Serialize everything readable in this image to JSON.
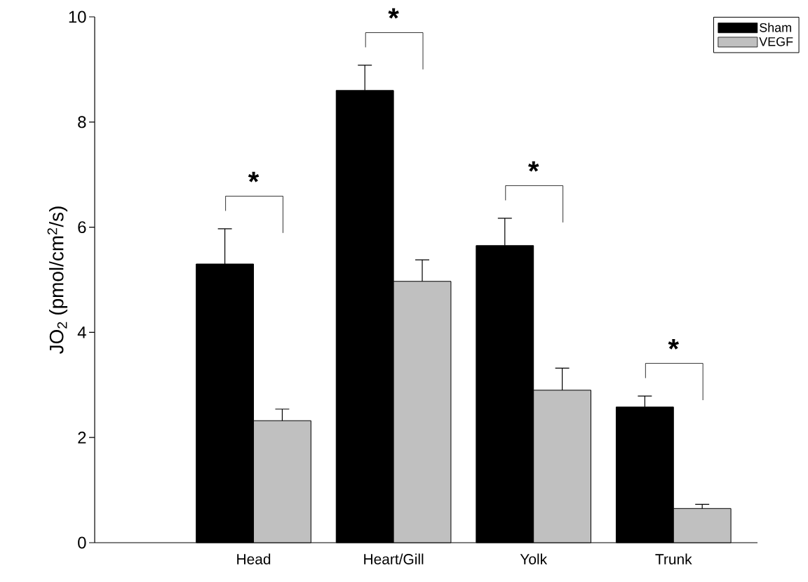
{
  "chart_data": {
    "type": "bar",
    "ylabel": "JO$_{2}$ (pmol/cm$^{2}$/s)",
    "categories": [
      "Head",
      "Heart/Gill",
      "Yolk",
      "Trunk"
    ],
    "series": [
      {
        "name": "Sham",
        "color": "#000000",
        "values": [
          5.3,
          8.6,
          5.65,
          2.58
        ],
        "errors": [
          [
            5.3,
            5.97
          ],
          [
            8.6,
            9.08
          ],
          [
            5.65,
            6.17
          ],
          [
            2.58,
            2.79
          ]
        ]
      },
      {
        "name": "VEGF",
        "color": "#c0c0c0",
        "values": [
          2.32,
          4.97,
          2.9,
          0.65
        ],
        "errors": [
          [
            2.32,
            2.54
          ],
          [
            4.97,
            5.38
          ],
          [
            2.9,
            3.32
          ],
          [
            0.65,
            0.73
          ]
        ]
      }
    ],
    "ylim": [
      0,
      10
    ],
    "yticks": [
      0,
      2,
      4,
      6,
      8,
      10
    ],
    "legend": "top right",
    "grid": false,
    "annotations": [
      "*",
      "*",
      "*",
      "*"
    ]
  }
}
